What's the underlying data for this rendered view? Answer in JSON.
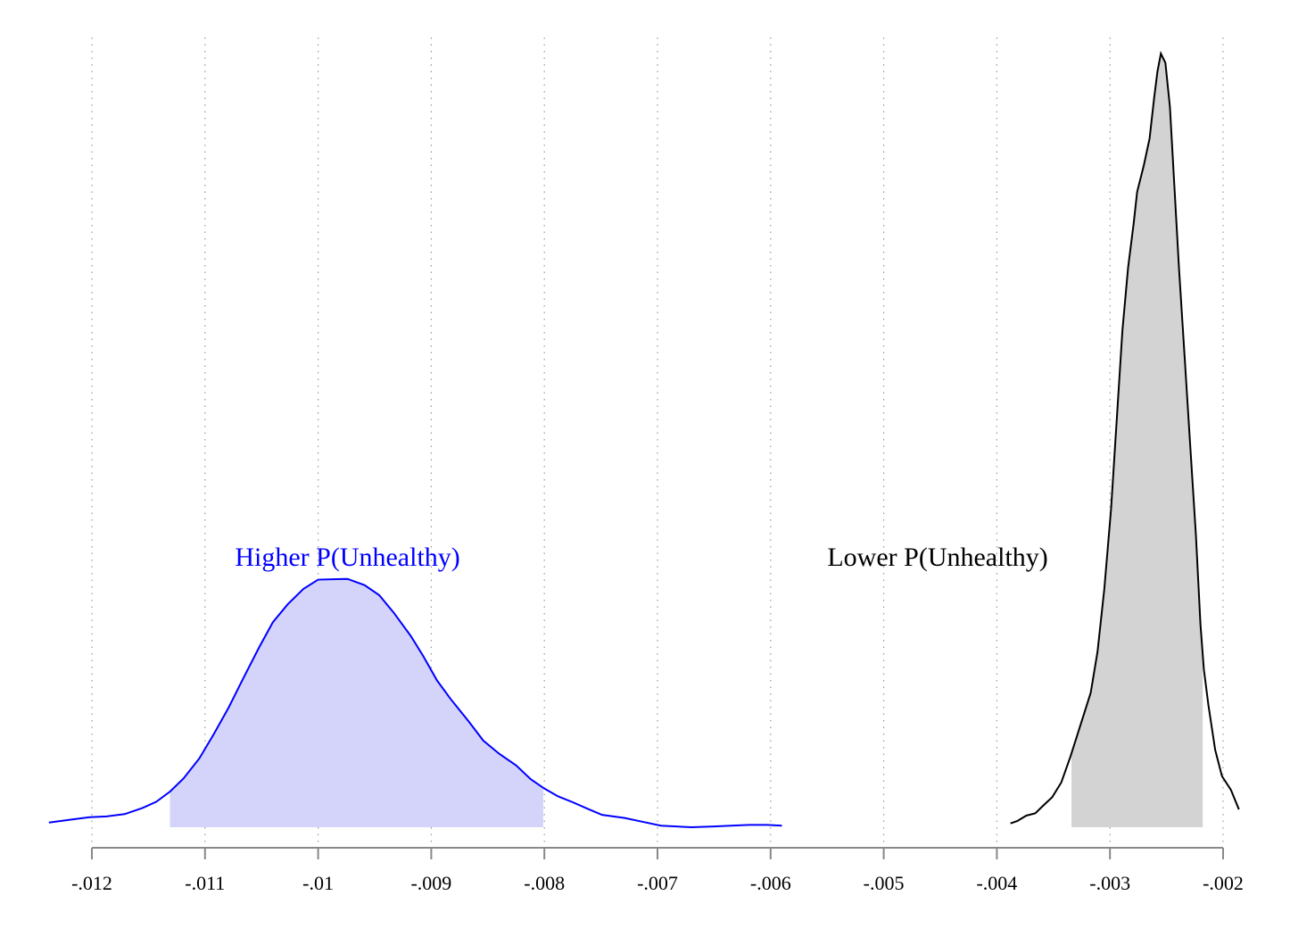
{
  "chart_data": {
    "type": "density",
    "xlim": [
      -0.012,
      -0.002
    ],
    "xticks": [
      {
        "value": -0.012,
        "label": "-.012"
      },
      {
        "value": -0.011,
        "label": "-.011"
      },
      {
        "value": -0.01,
        "label": "-.01"
      },
      {
        "value": -0.009,
        "label": "-.009"
      },
      {
        "value": -0.008,
        "label": "-.008"
      },
      {
        "value": -0.007,
        "label": "-.007"
      },
      {
        "value": -0.006,
        "label": "-.006"
      },
      {
        "value": -0.005,
        "label": "-.005"
      },
      {
        "value": -0.004,
        "label": "-.004"
      },
      {
        "value": -0.003,
        "label": "-.003"
      },
      {
        "value": -0.002,
        "label": "-.002"
      }
    ],
    "ylim": [
      0,
      1
    ],
    "grid": true,
    "series": [
      {
        "name": "Higher P(Unhealthy)",
        "color": "#0000ff",
        "fill": "#d4d4fa",
        "shade": [
          -0.01131,
          -0.00801
        ],
        "x": [
          -0.01238,
          -0.01218,
          -0.01202,
          -0.01187,
          -0.01171,
          -0.01155,
          -0.01143,
          -0.01131,
          -0.01119,
          -0.01105,
          -0.01092,
          -0.01079,
          -0.01066,
          -0.01052,
          -0.0104,
          -0.01027,
          -0.01013,
          -0.01,
          -0.00974,
          -0.00959,
          -0.00946,
          -0.00933,
          -0.00918,
          -0.00907,
          -0.00895,
          -0.00883,
          -0.00867,
          -0.00854,
          -0.0084,
          -0.00825,
          -0.00812,
          -0.008,
          -0.00788,
          -0.00776,
          -0.00762,
          -0.00749,
          -0.00729,
          -0.00713,
          -0.00697,
          -0.0067,
          -0.0065,
          -0.00635,
          -0.00619,
          -0.00603,
          -0.0059
        ],
        "values": [
          0.006,
          0.01,
          0.013,
          0.014,
          0.017,
          0.025,
          0.033,
          0.046,
          0.063,
          0.089,
          0.121,
          0.155,
          0.193,
          0.233,
          0.265,
          0.288,
          0.308,
          0.32,
          0.321,
          0.313,
          0.3,
          0.277,
          0.247,
          0.221,
          0.19,
          0.166,
          0.137,
          0.112,
          0.095,
          0.08,
          0.062,
          0.05,
          0.04,
          0.033,
          0.024,
          0.016,
          0.012,
          0.007,
          0.002,
          0,
          0.001,
          0.002,
          0.003,
          0.003,
          0.002
        ]
      },
      {
        "name": "Lower P(Unhealthy)",
        "color": "#000000",
        "fill": "#d3d3d3",
        "shade": [
          -0.00334,
          -0.00218
        ],
        "x": [
          -0.00388,
          -0.00382,
          -0.00374,
          -0.00366,
          -0.00359,
          -0.00351,
          -0.00343,
          -0.00335,
          -0.00325,
          -0.00317,
          -0.00311,
          -0.00305,
          -0.00299,
          -0.00294,
          -0.00289,
          -0.00284,
          -0.00279,
          -0.00276,
          -0.0027,
          -0.00265,
          -0.00261,
          -0.00258,
          -0.00255,
          -0.00251,
          -0.00247,
          -0.00243,
          -0.00239,
          -0.00234,
          -0.00229,
          -0.00224,
          -0.0022,
          -0.00217,
          -0.00213,
          -0.00207,
          -0.00201,
          -0.00193,
          -0.00186
        ],
        "values": [
          0.005,
          0.008,
          0.015,
          0.018,
          0.028,
          0.039,
          0.058,
          0.091,
          0.137,
          0.174,
          0.227,
          0.308,
          0.412,
          0.527,
          0.642,
          0.723,
          0.781,
          0.821,
          0.856,
          0.89,
          0.942,
          0.977,
          1,
          0.988,
          0.931,
          0.827,
          0.723,
          0.608,
          0.492,
          0.377,
          0.262,
          0.204,
          0.158,
          0.1,
          0.066,
          0.048,
          0.023
        ]
      }
    ]
  }
}
